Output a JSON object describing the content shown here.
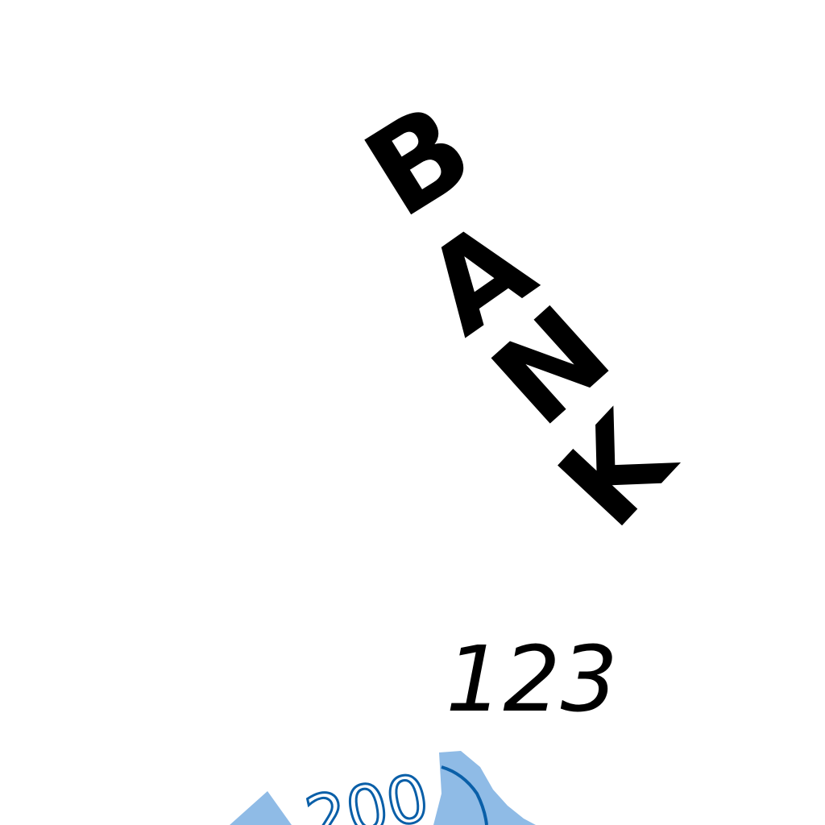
{
  "map": {
    "feature_label": "BANK",
    "spot_height": "123",
    "contour_label": "200",
    "colors": {
      "text": "#000000",
      "water_fill": "#8fbbe6",
      "contour_line": "#0a5fa8",
      "background": "#ffffff"
    }
  }
}
